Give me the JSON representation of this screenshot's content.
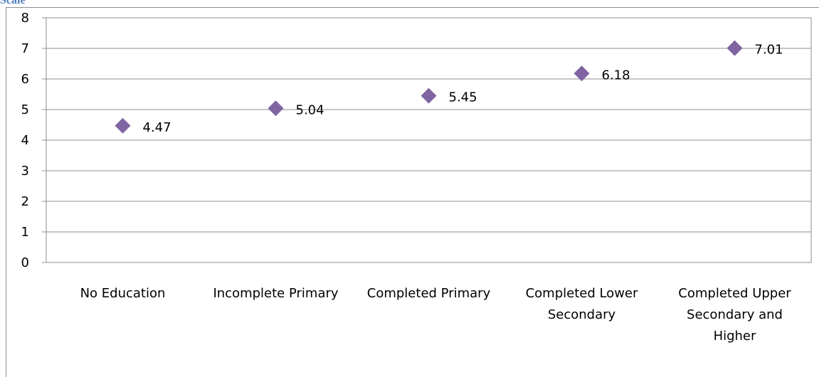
{
  "caption": "Scale",
  "chart_data": {
    "type": "scatter",
    "title": "",
    "xlabel": "",
    "ylabel": "",
    "categories": [
      [
        "No Education"
      ],
      [
        "Incomplete Primary"
      ],
      [
        "Completed Primary"
      ],
      [
        "Completed Lower",
        "Secondary"
      ],
      [
        "Completed Upper",
        "Secondary and",
        "Higher"
      ]
    ],
    "values": [
      4.47,
      5.04,
      5.45,
      6.18,
      7.01
    ],
    "data_labels": [
      "4.47",
      "5.04",
      "5.45",
      "6.18",
      "7.01"
    ],
    "ylim": [
      0,
      8
    ],
    "yticks": [
      "0",
      "1",
      "2",
      "3",
      "4",
      "5",
      "6",
      "7",
      "8"
    ],
    "grid": true,
    "legend": "none",
    "marker": "diamond",
    "colors": {
      "marker": "#8064a2",
      "grid": "#8c8c8c",
      "caption": "#4f81bd"
    }
  }
}
